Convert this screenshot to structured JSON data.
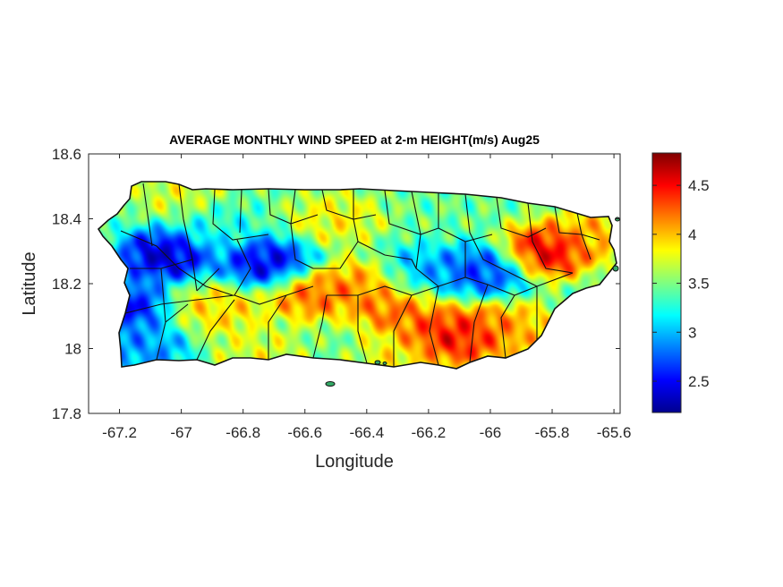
{
  "chart_data": {
    "type": "heatmap",
    "title": "AVERAGE MONTHLY WIND SPEED at 2-m HEIGHT(m/s) Aug25",
    "xlabel": "Longitude",
    "ylabel": "Latitude",
    "xlim": [
      -67.3,
      -65.58
    ],
    "ylim": [
      17.8,
      18.6
    ],
    "xticks": [
      -67.2,
      -67,
      -66.8,
      -66.6,
      -66.4,
      -66.2,
      -66,
      -65.8,
      -65.6
    ],
    "xtick_labels": [
      "-67.2",
      "-67",
      "-66.8",
      "-66.6",
      "-66.4",
      "-66.2",
      "-66",
      "-65.8",
      "-65.6"
    ],
    "yticks": [
      17.8,
      18,
      18.2,
      18.4,
      18.6
    ],
    "ytick_labels": [
      "17.8",
      "18",
      "18.2",
      "18.4",
      "18.6"
    ],
    "colorbar": {
      "colormap": "jet",
      "clim": [
        2.18,
        4.83
      ],
      "ticks": [
        2.5,
        3,
        3.5,
        4,
        4.5
      ],
      "tick_labels": [
        "2.5",
        "3",
        "3.5",
        "4",
        "4.5"
      ]
    },
    "grid": false,
    "base_value": 3.45,
    "features": [
      {
        "lon": -67.05,
        "lat": 18.29,
        "value": 2.2
      },
      {
        "lon": -67.2,
        "lat": 18.13,
        "value": 2.35
      },
      {
        "lon": -67.12,
        "lat": 18.0,
        "value": 2.8
      },
      {
        "lon": -66.72,
        "lat": 18.26,
        "value": 2.3
      },
      {
        "lon": -66.25,
        "lat": 18.23,
        "value": 2.8
      },
      {
        "lon": -66.02,
        "lat": 18.24,
        "value": 2.55
      },
      {
        "lon": -66.9,
        "lat": 18.38,
        "value": 3.2
      },
      {
        "lon": -66.38,
        "lat": 18.2,
        "value": 4.3
      },
      {
        "lon": -66.3,
        "lat": 18.12,
        "value": 4.35
      },
      {
        "lon": -66.58,
        "lat": 18.17,
        "value": 4.35
      },
      {
        "lon": -66.14,
        "lat": 18.03,
        "value": 4.65
      },
      {
        "lon": -66.05,
        "lat": 18.05,
        "value": 4.45
      },
      {
        "lon": -65.82,
        "lat": 18.3,
        "value": 4.75
      },
      {
        "lon": -65.92,
        "lat": 18.06,
        "value": 4.1
      },
      {
        "lon": -65.67,
        "lat": 18.35,
        "value": 4.1
      },
      {
        "lon": -66.87,
        "lat": 18.12,
        "value": 4.0
      },
      {
        "lon": -66.5,
        "lat": 18.4,
        "value": 3.9
      },
      {
        "lon": -66.75,
        "lat": 17.99,
        "value": 3.8
      },
      {
        "lon": -66.28,
        "lat": 17.97,
        "value": 3.9
      },
      {
        "lon": -67.0,
        "lat": 18.47,
        "value": 3.8
      }
    ]
  }
}
